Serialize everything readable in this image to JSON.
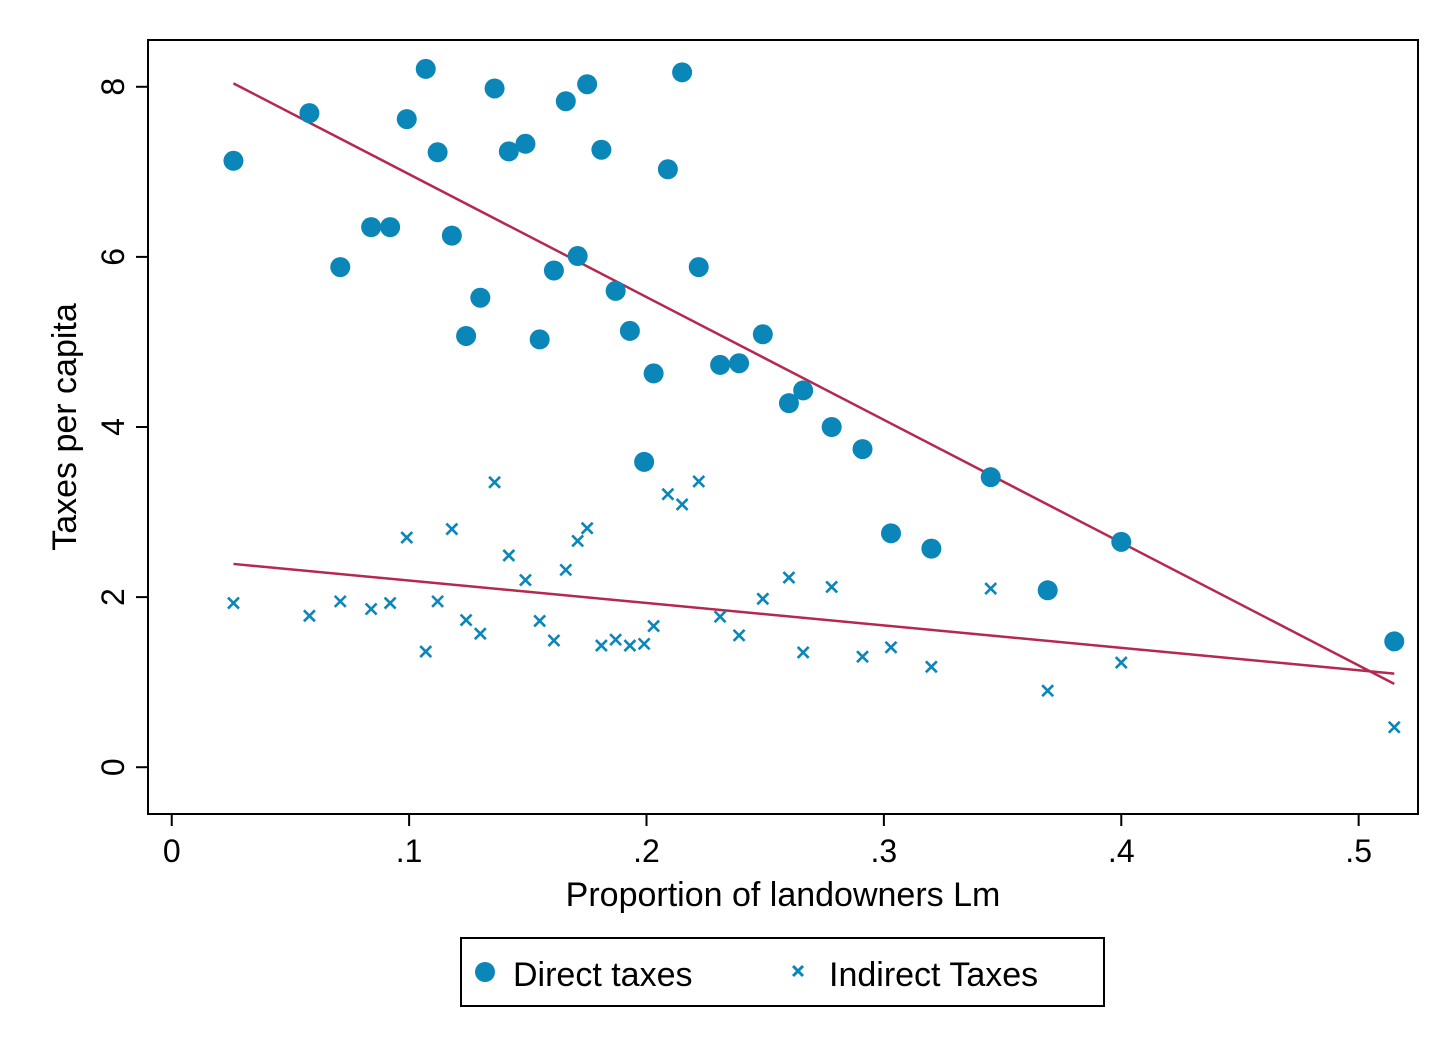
{
  "chart_data": {
    "type": "scatter",
    "title": "",
    "xlabel": "Proportion of landowners Lm",
    "ylabel": "Taxes per capita",
    "xlim": [
      -0.01,
      0.525
    ],
    "ylim": [
      -0.55,
      8.55
    ],
    "x_ticks": [
      0,
      0.1,
      0.2,
      0.3,
      0.4,
      0.5
    ],
    "x_tick_labels": [
      "0",
      ".1",
      ".2",
      ".3",
      ".4",
      ".5"
    ],
    "y_ticks": [
      0,
      2,
      4,
      6,
      8
    ],
    "y_tick_labels": [
      "0",
      "2",
      "4",
      "6",
      "8"
    ],
    "grid": false,
    "legend_position": "bottom",
    "colors": {
      "points": "#0a86b8",
      "fit_line": "#b5284f"
    },
    "series": [
      {
        "name": "Direct taxes",
        "marker": "circle",
        "points": [
          [
            0.026,
            7.13
          ],
          [
            0.058,
            7.69
          ],
          [
            0.071,
            5.88
          ],
          [
            0.084,
            6.35
          ],
          [
            0.092,
            6.35
          ],
          [
            0.099,
            7.62
          ],
          [
            0.107,
            8.21
          ],
          [
            0.112,
            7.23
          ],
          [
            0.118,
            6.25
          ],
          [
            0.124,
            5.07
          ],
          [
            0.13,
            5.52
          ],
          [
            0.136,
            7.98
          ],
          [
            0.142,
            7.24
          ],
          [
            0.149,
            7.33
          ],
          [
            0.155,
            5.03
          ],
          [
            0.161,
            5.84
          ],
          [
            0.166,
            7.83
          ],
          [
            0.171,
            6.01
          ],
          [
            0.175,
            8.03
          ],
          [
            0.181,
            7.26
          ],
          [
            0.187,
            5.6
          ],
          [
            0.193,
            5.13
          ],
          [
            0.199,
            3.59
          ],
          [
            0.203,
            4.63
          ],
          [
            0.209,
            7.03
          ],
          [
            0.215,
            8.17
          ],
          [
            0.222,
            5.88
          ],
          [
            0.231,
            4.73
          ],
          [
            0.239,
            4.75
          ],
          [
            0.249,
            5.09
          ],
          [
            0.26,
            4.28
          ],
          [
            0.266,
            4.43
          ],
          [
            0.278,
            4.0
          ],
          [
            0.291,
            3.74
          ],
          [
            0.303,
            2.75
          ],
          [
            0.32,
            2.57
          ],
          [
            0.345,
            3.41
          ],
          [
            0.369,
            2.08
          ],
          [
            0.4,
            2.65
          ],
          [
            0.515,
            1.48
          ]
        ]
      },
      {
        "name": "Indirect Taxes",
        "marker": "x",
        "points": [
          [
            0.026,
            1.93
          ],
          [
            0.058,
            1.78
          ],
          [
            0.071,
            1.95
          ],
          [
            0.084,
            1.86
          ],
          [
            0.092,
            1.93
          ],
          [
            0.099,
            2.7
          ],
          [
            0.107,
            1.36
          ],
          [
            0.112,
            1.95
          ],
          [
            0.118,
            2.8
          ],
          [
            0.124,
            1.73
          ],
          [
            0.13,
            1.57
          ],
          [
            0.136,
            3.35
          ],
          [
            0.142,
            2.49
          ],
          [
            0.149,
            2.2
          ],
          [
            0.155,
            1.72
          ],
          [
            0.161,
            1.49
          ],
          [
            0.166,
            2.32
          ],
          [
            0.171,
            2.66
          ],
          [
            0.175,
            2.81
          ],
          [
            0.181,
            1.43
          ],
          [
            0.187,
            1.5
          ],
          [
            0.193,
            1.43
          ],
          [
            0.199,
            1.45
          ],
          [
            0.203,
            1.66
          ],
          [
            0.209,
            3.21
          ],
          [
            0.215,
            3.09
          ],
          [
            0.222,
            3.36
          ],
          [
            0.231,
            1.77
          ],
          [
            0.239,
            1.55
          ],
          [
            0.249,
            1.98
          ],
          [
            0.26,
            2.23
          ],
          [
            0.266,
            1.35
          ],
          [
            0.278,
            2.12
          ],
          [
            0.291,
            1.3
          ],
          [
            0.303,
            1.41
          ],
          [
            0.32,
            1.18
          ],
          [
            0.345,
            2.1
          ],
          [
            0.369,
            0.9
          ],
          [
            0.4,
            1.23
          ],
          [
            0.515,
            0.47
          ]
        ]
      }
    ],
    "fit_lines": [
      {
        "name": "Direct taxes fit",
        "x": [
          0.026,
          0.515
        ],
        "y": [
          8.04,
          0.98
        ]
      },
      {
        "name": "Indirect Taxes fit",
        "x": [
          0.026,
          0.515
        ],
        "y": [
          2.39,
          1.1
        ]
      }
    ]
  },
  "legend": {
    "items": [
      "Direct taxes",
      "Indirect Taxes"
    ]
  }
}
